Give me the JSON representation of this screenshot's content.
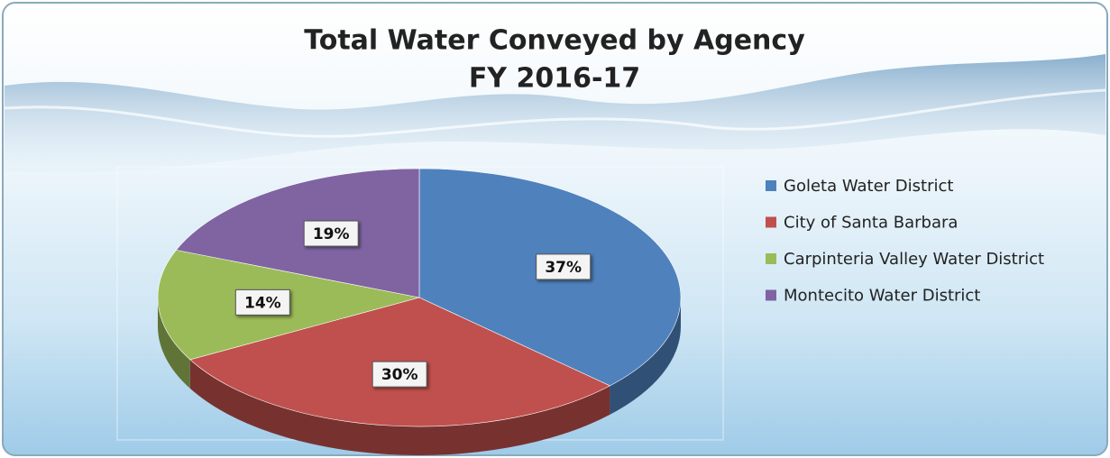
{
  "chart_data": {
    "type": "pie",
    "title": "Total Water Conveyed by Agency",
    "subtitle": "FY 2016-17",
    "categories": [
      "Goleta Water District",
      "City of Santa Barbara",
      "Carpinteria Valley Water District",
      "Montecito Water District"
    ],
    "values": [
      37,
      30,
      14,
      19
    ],
    "value_labels": [
      "37%",
      "30%",
      "14%",
      "19%"
    ],
    "colors": [
      "#4f81bd",
      "#c0504d",
      "#9bbb59",
      "#8064a2"
    ],
    "legend": "right"
  }
}
